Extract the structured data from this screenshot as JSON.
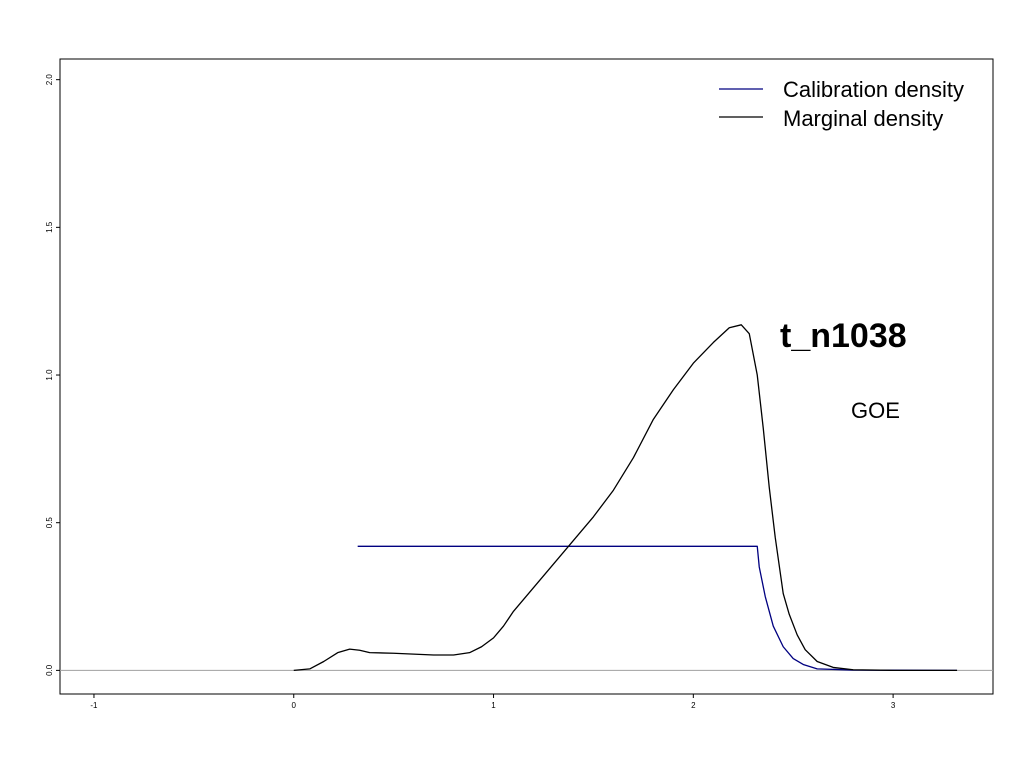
{
  "chart_data": {
    "type": "line",
    "title": "t_n1038",
    "subtitle": "GOE",
    "xlabel": "",
    "ylabel": "",
    "xlim": [
      -1.17,
      3.5
    ],
    "ylim": [
      -0.08,
      2.07
    ],
    "x_ticks": [
      -1,
      0,
      1,
      2,
      3
    ],
    "y_ticks": [
      0.0,
      0.5,
      1.0,
      1.5,
      2.0
    ],
    "x_tick_labels": [
      "-1",
      "0",
      "1",
      "2",
      "3"
    ],
    "y_tick_labels": [
      "0.0",
      "0.5",
      "1.0",
      "1.5",
      "2.0"
    ],
    "grid": false,
    "legend_position": "top-right",
    "baseline": 0.0,
    "series": [
      {
        "name": "Calibration density",
        "color": "#000080",
        "points": [
          [
            0.32,
            0.42
          ],
          [
            2.32,
            0.42
          ],
          [
            2.33,
            0.35
          ],
          [
            2.36,
            0.25
          ],
          [
            2.4,
            0.15
          ],
          [
            2.45,
            0.08
          ],
          [
            2.5,
            0.04
          ],
          [
            2.55,
            0.02
          ],
          [
            2.62,
            0.005
          ],
          [
            2.8,
            0.001
          ],
          [
            3.32,
            0.0
          ]
        ]
      },
      {
        "name": "Marginal density",
        "color": "#000000",
        "points": [
          [
            0.0,
            0.0
          ],
          [
            0.08,
            0.005
          ],
          [
            0.15,
            0.03
          ],
          [
            0.22,
            0.06
          ],
          [
            0.28,
            0.072
          ],
          [
            0.33,
            0.068
          ],
          [
            0.38,
            0.06
          ],
          [
            0.5,
            0.058
          ],
          [
            0.6,
            0.055
          ],
          [
            0.7,
            0.052
          ],
          [
            0.8,
            0.052
          ],
          [
            0.88,
            0.06
          ],
          [
            0.94,
            0.08
          ],
          [
            1.0,
            0.11
          ],
          [
            1.05,
            0.15
          ],
          [
            1.1,
            0.2
          ],
          [
            1.2,
            0.28
          ],
          [
            1.3,
            0.36
          ],
          [
            1.4,
            0.44
          ],
          [
            1.5,
            0.52
          ],
          [
            1.6,
            0.61
          ],
          [
            1.7,
            0.72
          ],
          [
            1.8,
            0.85
          ],
          [
            1.9,
            0.95
          ],
          [
            2.0,
            1.04
          ],
          [
            2.1,
            1.11
          ],
          [
            2.18,
            1.16
          ],
          [
            2.24,
            1.17
          ],
          [
            2.28,
            1.14
          ],
          [
            2.32,
            1.0
          ],
          [
            2.35,
            0.82
          ],
          [
            2.38,
            0.62
          ],
          [
            2.41,
            0.45
          ],
          [
            2.45,
            0.26
          ],
          [
            2.48,
            0.19
          ],
          [
            2.52,
            0.12
          ],
          [
            2.56,
            0.07
          ],
          [
            2.62,
            0.03
          ],
          [
            2.7,
            0.01
          ],
          [
            2.8,
            0.002
          ],
          [
            3.0,
            0.0
          ],
          [
            3.32,
            0.0
          ]
        ]
      }
    ]
  }
}
